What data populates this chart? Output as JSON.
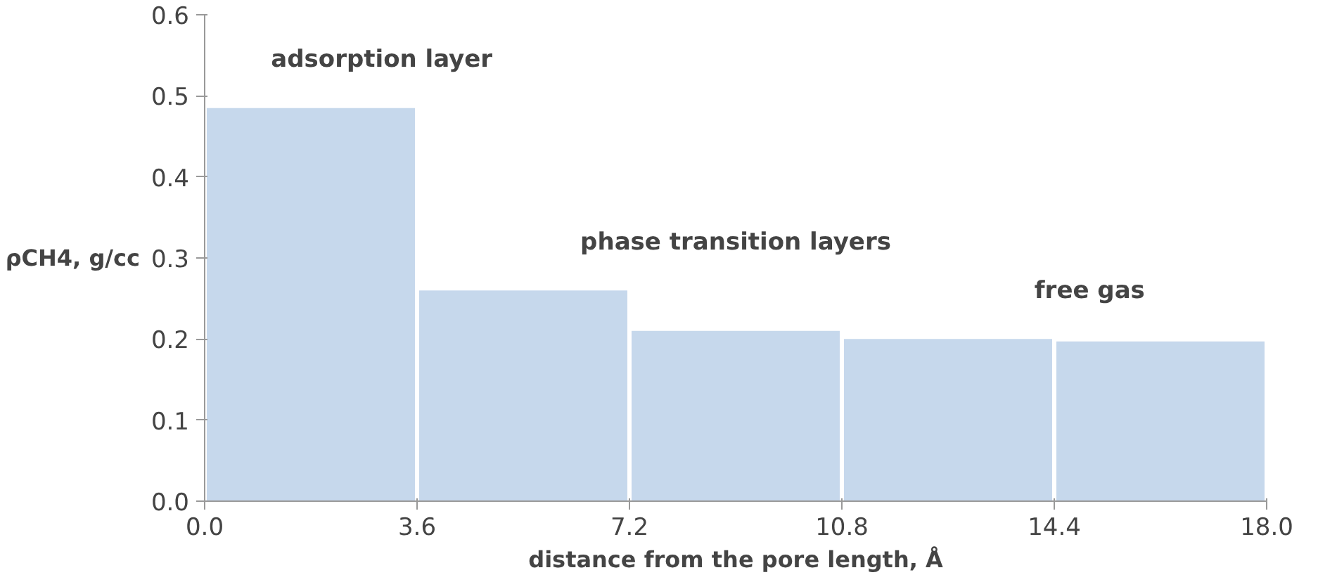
{
  "chart_data": {
    "type": "histogram",
    "xlabel": "distance from the pore length, Å",
    "ylabel": "ρCH4, g/cc",
    "bins": [
      0,
      3.6,
      7.2,
      10.8,
      14.4,
      18
    ],
    "values": [
      0.485,
      0.26,
      0.21,
      0.2,
      0.197
    ],
    "color": "#c6d8ec",
    "xlim": [
      0,
      18
    ],
    "ylim": [
      0,
      0.6
    ],
    "xticks": [
      {
        "value": 0,
        "label": "0.0"
      },
      3.6,
      7.2,
      10.8,
      14.4,
      {
        "value": 18,
        "label": "18.0"
      }
    ],
    "yticks": [
      {
        "value": 0,
        "label": "0.0"
      },
      0.1,
      0.2,
      0.3,
      0.4,
      0.5,
      0.6
    ],
    "annotations": [
      "adsorption layer",
      "phase transition layers",
      "free gas"
    ],
    "grid": false
  }
}
